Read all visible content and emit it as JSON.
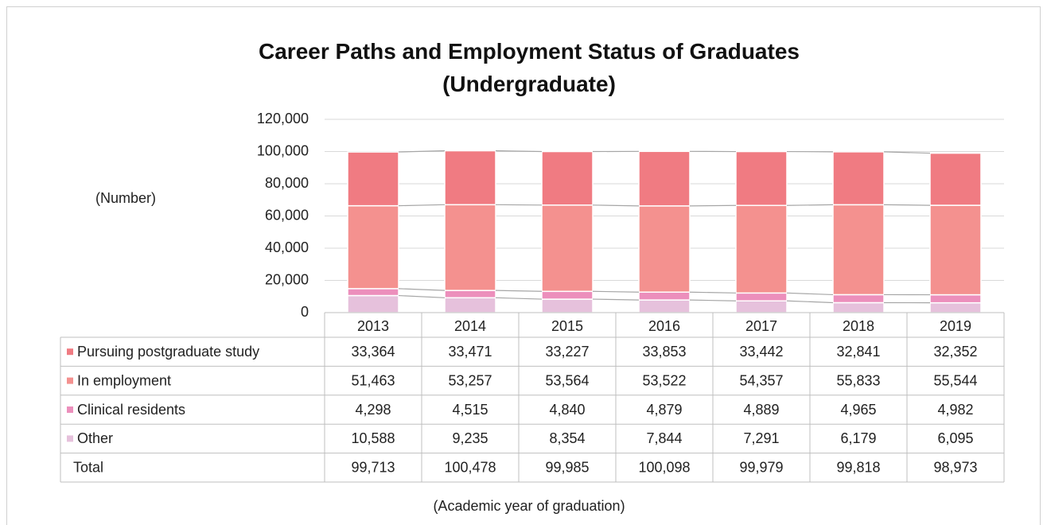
{
  "chart_data": {
    "type": "stacked-bar",
    "title": "Career Paths and Employment Status of Graduates (Undergraduate)",
    "y_label": "(Number)",
    "x_label": "(Academic year of graduation)",
    "categories": [
      "2013",
      "2014",
      "2015",
      "2016",
      "2017",
      "2018",
      "2019"
    ],
    "series": [
      {
        "name": "Pursuing postgraduate study",
        "color": "#f07b82",
        "values": [
          33364,
          33471,
          33227,
          33853,
          33442,
          32841,
          32352
        ],
        "value_labels": [
          "33,364",
          "33,471",
          "33,227",
          "33,853",
          "33,442",
          "32,841",
          "32,352"
        ]
      },
      {
        "name": "In employment",
        "color": "#f4918f",
        "values": [
          51463,
          53257,
          53564,
          53522,
          54357,
          55833,
          55544
        ],
        "value_labels": [
          "51,463",
          "53,257",
          "53,564",
          "53,522",
          "54,357",
          "55,833",
          "55,544"
        ]
      },
      {
        "name": "Clinical residents",
        "color": "#ec8fbc",
        "values": [
          4298,
          4515,
          4840,
          4879,
          4889,
          4965,
          4982
        ],
        "value_labels": [
          "4,298",
          "4,515",
          "4,840",
          "4,879",
          "4,889",
          "4,965",
          "4,982"
        ]
      },
      {
        "name": "Other",
        "color": "#e6c1dc",
        "values": [
          10588,
          9235,
          8354,
          7844,
          7291,
          6179,
          6095
        ],
        "value_labels": [
          "10,588",
          "9,235",
          "8,354",
          "7,844",
          "7,291",
          "6,179",
          "6,095"
        ]
      }
    ],
    "totals": {
      "name": "Total",
      "values": [
        99713,
        100478,
        99985,
        100098,
        99979,
        99818,
        98973
      ],
      "value_labels": [
        "99,713",
        "100,478",
        "99,985",
        "100,098",
        "99,979",
        "99,818",
        "98,973"
      ]
    },
    "ylim": [
      0,
      120000
    ],
    "yticks": [
      0,
      {
        "value": 20000,
        "label": "20,000"
      },
      {
        "value": 40000,
        "label": "40,000"
      },
      {
        "value": 60000,
        "label": "60,000"
      },
      {
        "value": 80000,
        "label": "80,000"
      },
      {
        "value": 100000,
        "label": "100,000"
      },
      {
        "value": 120000,
        "label": "120,000"
      }
    ],
    "grid": true
  }
}
